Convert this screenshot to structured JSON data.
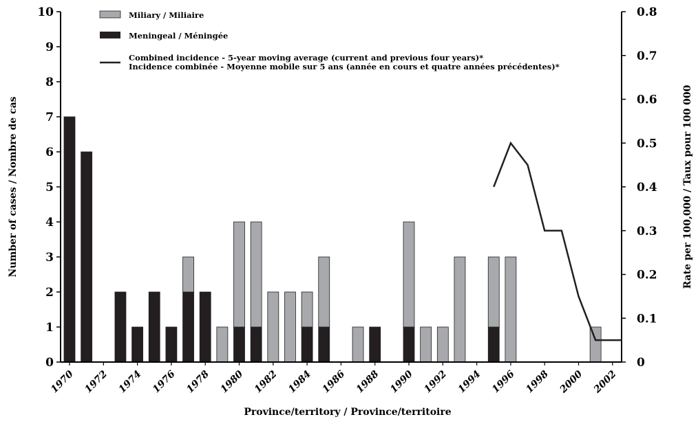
{
  "chart_data": {
    "type": "bar",
    "stacked": true,
    "title": "",
    "xlabel": "Province/territory / Province/territoire",
    "ylabel": "Number of cases / Nombre de cas",
    "y2label": "Rate per 100,000 / Taux pour 100 000",
    "x": [
      1970,
      1971,
      1972,
      1973,
      1974,
      1975,
      1976,
      1977,
      1978,
      1979,
      1980,
      1981,
      1982,
      1983,
      1984,
      1985,
      1986,
      1987,
      1988,
      1989,
      1990,
      1991,
      1992,
      1993,
      1994,
      1995,
      1996,
      1997,
      1998,
      1999,
      2000,
      2001,
      2002
    ],
    "xtick_labels": [
      "1970",
      "1972",
      "1974",
      "1976",
      "1978",
      "1980",
      "1982",
      "1984",
      "1986",
      "1988",
      "1990",
      "1992",
      "1994",
      "1996",
      "1998",
      "2000",
      "2002"
    ],
    "ylim": [
      0,
      10
    ],
    "yticks": [
      "0",
      "1",
      "2",
      "3",
      "4",
      "5",
      "6",
      "7",
      "8",
      "9",
      "10"
    ],
    "y2lim": [
      0,
      0.8
    ],
    "y2ticks": [
      "0",
      "0.1",
      "0.2",
      "0.3",
      "0.4",
      "0.5",
      "0.6",
      "0.7",
      "0.8"
    ],
    "series": [
      {
        "name": "Meningeal / Méningée",
        "color": "#231f20",
        "values": [
          7,
          6,
          0,
          2,
          1,
          2,
          1,
          2,
          2,
          0,
          1,
          1,
          0,
          0,
          1,
          1,
          0,
          0,
          1,
          0,
          1,
          0,
          0,
          0,
          0,
          1,
          0,
          0,
          0,
          0,
          0,
          0,
          0
        ]
      },
      {
        "name": "Miliary / Miliaire",
        "color": "#a7a9ac",
        "values": [
          0,
          0,
          0,
          0,
          0,
          0,
          0,
          1,
          0,
          1,
          3,
          3,
          2,
          2,
          1,
          2,
          0,
          1,
          0,
          0,
          3,
          1,
          1,
          3,
          0,
          2,
          3,
          0,
          0,
          0,
          0,
          1,
          0
        ]
      }
    ],
    "line": {
      "name": "Combined incidence - 5-year moving average (current and previous four years)*",
      "name_fr": "Incidence combinée - Moyenne mobile sur 5 ans (année en cours et quatre années précédentes)*",
      "axis": "right",
      "x": [
        1995,
        1996,
        1997,
        1998,
        1999,
        2000,
        2001,
        2002
      ],
      "values": [
        0.4,
        0.5,
        0.45,
        0.3,
        0.3,
        0.15,
        0.05,
        0.05
      ]
    },
    "grid": false,
    "legend": "top-left"
  }
}
